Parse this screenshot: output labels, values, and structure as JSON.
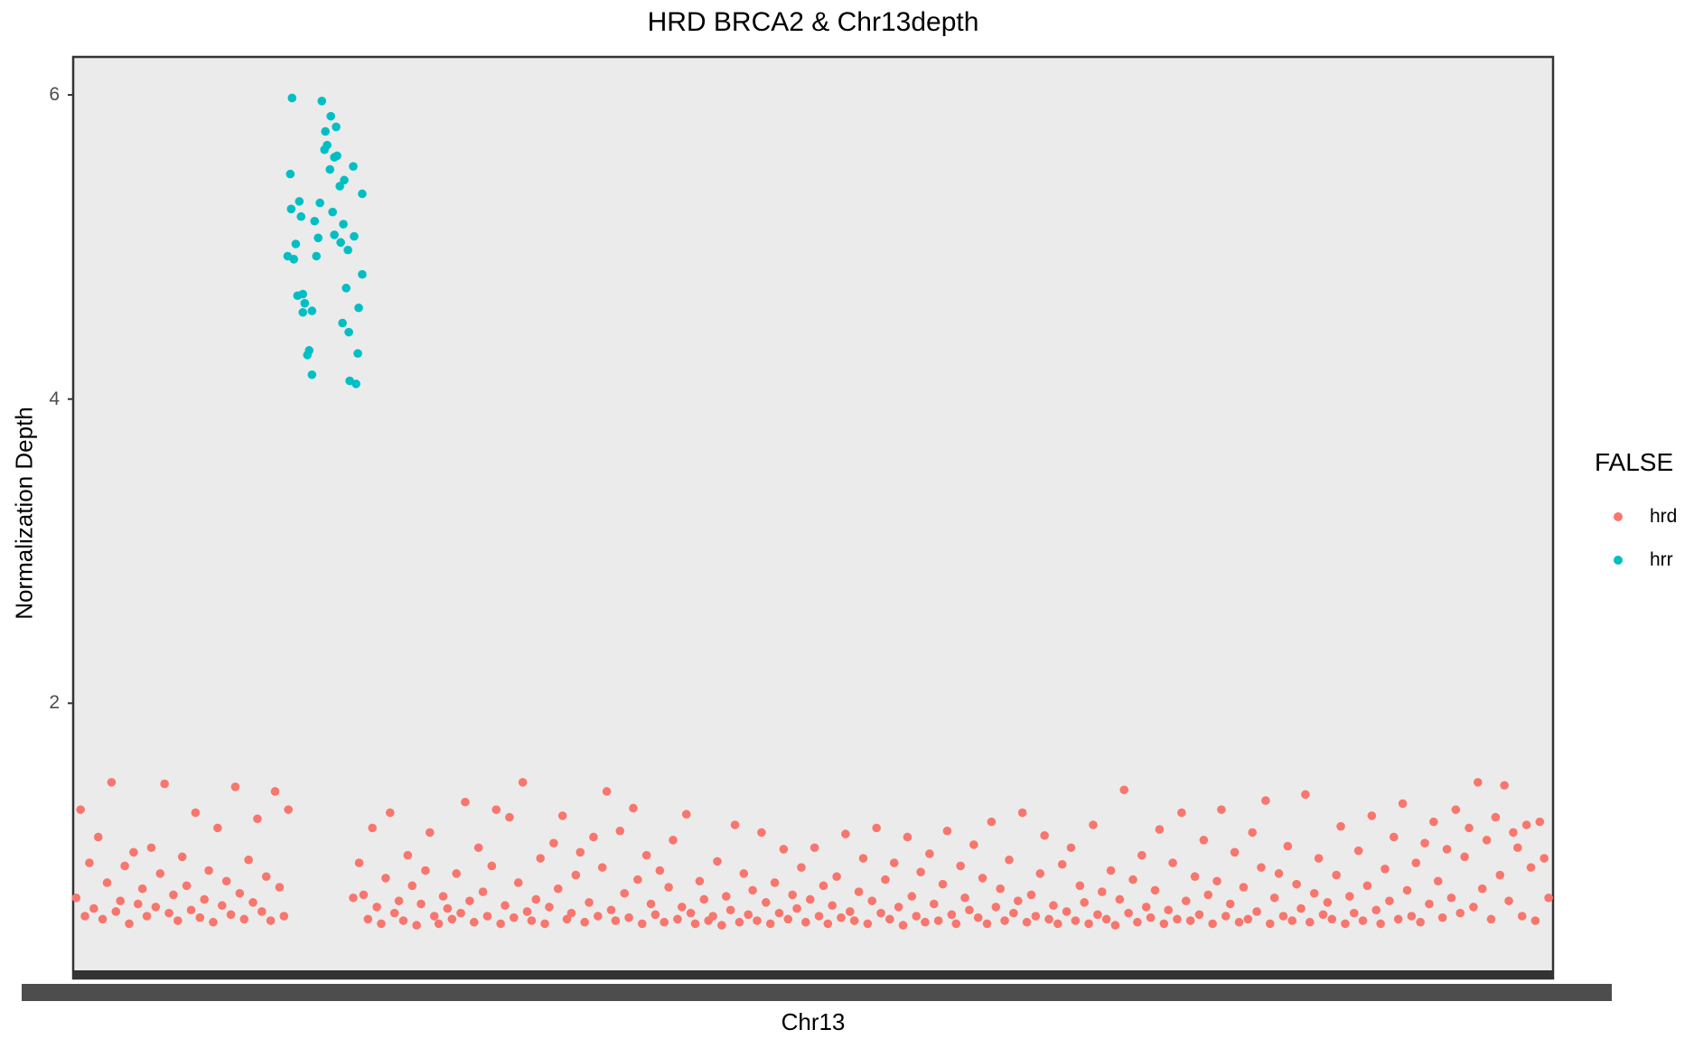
{
  "chart_data": {
    "type": "scatter",
    "title": "HRD BRCA2 & Chr13depth",
    "xlabel": "Chr13",
    "ylabel": "Normalization Depth",
    "ylim": [
      0.19,
      6.25
    ],
    "xlim": [
      -2,
      1002
    ],
    "yticks": [
      2,
      4,
      6
    ],
    "ytick_labels": [
      "2",
      "4",
      "6"
    ],
    "x_tick_labels_overlapping": true,
    "grid": false,
    "legend": {
      "title": "FALSE",
      "placement": "right"
    },
    "series": [
      {
        "name": "hrd",
        "color": "#F8766D",
        "x": [
          0,
          3,
          6,
          9,
          12,
          15,
          18,
          21,
          24,
          27,
          30,
          33,
          36,
          39,
          42,
          45,
          48,
          51,
          54,
          57,
          60,
          63,
          66,
          69,
          72,
          75,
          78,
          81,
          84,
          87,
          90,
          93,
          96,
          99,
          102,
          105,
          108,
          111,
          114,
          117,
          120,
          123,
          126,
          129,
          132,
          135,
          138,
          141,
          144,
          188,
          192,
          195,
          198,
          201,
          204,
          207,
          210,
          213,
          216,
          219,
          222,
          225,
          228,
          231,
          234,
          237,
          240,
          243,
          246,
          249,
          252,
          255,
          258,
          261,
          264,
          267,
          270,
          273,
          276,
          279,
          282,
          285,
          288,
          291,
          294,
          297,
          300,
          303,
          306,
          309,
          312,
          315,
          318,
          321,
          324,
          327,
          330,
          333,
          336,
          339,
          342,
          345,
          348,
          351,
          354,
          357,
          360,
          363,
          366,
          369,
          372,
          375,
          378,
          381,
          384,
          387,
          390,
          393,
          396,
          399,
          402,
          405,
          408,
          411,
          414,
          417,
          420,
          423,
          426,
          429,
          432,
          435,
          438,
          441,
          444,
          447,
          450,
          453,
          456,
          459,
          462,
          465,
          468,
          471,
          474,
          477,
          480,
          483,
          486,
          489,
          492,
          495,
          498,
          501,
          504,
          507,
          510,
          513,
          516,
          519,
          522,
          525,
          528,
          531,
          534,
          537,
          540,
          543,
          546,
          549,
          552,
          555,
          558,
          561,
          564,
          567,
          570,
          573,
          576,
          579,
          582,
          585,
          588,
          591,
          594,
          597,
          600,
          603,
          606,
          609,
          612,
          615,
          618,
          621,
          624,
          627,
          630,
          633,
          636,
          639,
          642,
          645,
          648,
          651,
          654,
          657,
          660,
          663,
          666,
          669,
          672,
          675,
          678,
          681,
          684,
          687,
          690,
          693,
          696,
          699,
          702,
          705,
          708,
          711,
          714,
          717,
          720,
          723,
          726,
          729,
          732,
          735,
          738,
          741,
          744,
          747,
          750,
          753,
          756,
          759,
          762,
          765,
          768,
          771,
          774,
          777,
          780,
          783,
          786,
          789,
          792,
          795,
          798,
          801,
          804,
          807,
          810,
          813,
          816,
          819,
          822,
          825,
          828,
          831,
          834,
          837,
          840,
          843,
          846,
          849,
          852,
          855,
          858,
          861,
          864,
          867,
          870,
          873,
          876,
          879,
          882,
          885,
          888,
          891,
          894,
          897,
          900,
          903,
          906,
          909,
          912,
          915,
          918,
          921,
          924,
          927,
          930,
          933,
          936,
          939,
          942,
          945,
          948,
          951,
          954,
          957,
          960,
          963,
          966,
          969,
          972,
          975,
          978,
          981,
          984,
          987,
          990,
          993,
          996,
          999
        ],
        "y": [
          0.72,
          1.3,
          0.6,
          0.95,
          0.65,
          1.12,
          0.58,
          0.82,
          1.48,
          0.63,
          0.7,
          0.93,
          0.55,
          1.02,
          0.68,
          0.78,
          0.6,
          1.05,
          0.66,
          0.88,
          1.47,
          0.62,
          0.74,
          0.57,
          0.99,
          0.8,
          0.64,
          1.28,
          0.59,
          0.71,
          0.9,
          0.56,
          1.18,
          0.67,
          0.83,
          0.61,
          1.45,
          0.75,
          0.58,
          0.97,
          0.69,
          1.24,
          0.63,
          0.86,
          0.57,
          1.42,
          0.79,
          0.6,
          1.3,
          0.72,
          0.95,
          0.74,
          0.58,
          1.18,
          0.66,
          0.55,
          0.85,
          1.28,
          0.62,
          0.7,
          0.57,
          1.0,
          0.8,
          0.54,
          0.68,
          0.9,
          1.15,
          0.6,
          0.55,
          0.73,
          0.65,
          0.58,
          0.88,
          0.62,
          1.35,
          0.7,
          0.56,
          1.05,
          0.76,
          0.6,
          0.93,
          1.3,
          0.55,
          0.67,
          1.25,
          0.59,
          0.82,
          1.48,
          0.63,
          0.57,
          0.71,
          0.98,
          0.55,
          0.66,
          1.08,
          0.78,
          1.26,
          0.58,
          0.62,
          0.87,
          1.02,
          0.56,
          0.69,
          1.12,
          0.6,
          0.92,
          1.42,
          0.64,
          0.57,
          1.16,
          0.75,
          0.59,
          1.31,
          0.84,
          0.55,
          1.0,
          0.68,
          0.61,
          0.9,
          0.56,
          0.79,
          1.1,
          0.58,
          0.66,
          1.27,
          0.62,
          0.55,
          0.83,
          0.71,
          0.57,
          0.6,
          0.96,
          0.54,
          0.73,
          0.64,
          1.2,
          0.56,
          0.88,
          0.61,
          0.77,
          0.57,
          1.15,
          0.69,
          0.55,
          0.82,
          0.62,
          1.04,
          0.58,
          0.74,
          0.65,
          0.92,
          0.56,
          0.71,
          1.05,
          0.6,
          0.8,
          0.55,
          0.67,
          0.86,
          0.59,
          1.14,
          0.63,
          0.57,
          0.76,
          0.98,
          0.55,
          0.7,
          1.18,
          0.62,
          0.84,
          0.58,
          0.95,
          0.66,
          0.54,
          1.12,
          0.73,
          0.6,
          0.89,
          0.56,
          1.01,
          0.68,
          0.57,
          0.81,
          1.16,
          0.61,
          0.55,
          0.93,
          0.72,
          0.64,
          1.07,
          0.59,
          0.85,
          0.55,
          1.22,
          0.66,
          0.78,
          0.57,
          0.97,
          0.62,
          0.7,
          1.28,
          0.56,
          0.74,
          0.6,
          0.88,
          1.13,
          0.58,
          0.67,
          0.55,
          0.94,
          0.63,
          1.05,
          0.57,
          0.8,
          0.69,
          0.55,
          1.2,
          0.61,
          0.76,
          0.58,
          0.9,
          0.54,
          0.71,
          1.43,
          0.62,
          0.84,
          0.56,
          1.0,
          0.66,
          0.59,
          0.77,
          1.17,
          0.55,
          0.64,
          0.95,
          0.58,
          1.28,
          0.7,
          0.57,
          0.86,
          0.61,
          1.1,
          0.74,
          0.55,
          0.83,
          1.3,
          0.6,
          0.68,
          1.02,
          0.56,
          0.79,
          0.58,
          1.15,
          0.63,
          0.92,
          1.36,
          0.55,
          0.72,
          0.88,
          0.6,
          1.06,
          0.57,
          0.81,
          0.65,
          1.4,
          0.56,
          0.75,
          0.98,
          0.61,
          0.69,
          0.58,
          0.87,
          1.19,
          0.55,
          0.73,
          0.62,
          1.03,
          0.57,
          0.8,
          1.26,
          0.64,
          0.55,
          0.91,
          0.7,
          1.12,
          0.58,
          1.34,
          0.77,
          0.6,
          0.95,
          0.56,
          1.08,
          0.68,
          1.22,
          0.83,
          0.59,
          1.04,
          0.72,
          1.3,
          0.62,
          0.99,
          1.18,
          0.66,
          1.48,
          0.78,
          1.1,
          0.58,
          1.25,
          0.87,
          1.46,
          0.7,
          1.15,
          1.05,
          0.6,
          1.2,
          0.92,
          0.57,
          1.22,
          0.98,
          0.72
        ]
      },
      {
        "name": "hrr",
        "color": "#00BFC4",
        "x": [
          146.5,
          166.7,
          172.8,
          176.4,
          169.1,
          170.3,
          168.5,
          177.0,
          175.2,
          145.3,
          188.0,
          172.2,
          181.9,
          178.9,
          194.1,
          151.4,
          145.9,
          152.6,
          165.4,
          174.0,
          161.8,
          181.3,
          164.2,
          175.2,
          179.5,
          184.4,
          188.6,
          149.0,
          143.5,
          147.7,
          163.0,
          194.1,
          183.2,
          150.2,
          153.8,
          155.1,
          153.8,
          160.0,
          191.7,
          180.7,
          185.0,
          158.1,
          156.9,
          191.1,
          160.0,
          185.6,
          189.9
        ],
        "y": [
          5.98,
          5.96,
          5.86,
          5.79,
          5.76,
          5.67,
          5.64,
          5.6,
          5.59,
          5.48,
          5.53,
          5.51,
          5.44,
          5.4,
          5.35,
          5.3,
          5.25,
          5.2,
          5.29,
          5.23,
          5.17,
          5.15,
          5.06,
          5.08,
          5.03,
          4.98,
          5.07,
          5.02,
          4.94,
          4.92,
          4.94,
          4.82,
          4.73,
          4.68,
          4.69,
          4.63,
          4.57,
          4.58,
          4.6,
          4.5,
          4.44,
          4.32,
          4.29,
          4.3,
          4.16,
          4.12,
          4.1
        ]
      }
    ]
  }
}
